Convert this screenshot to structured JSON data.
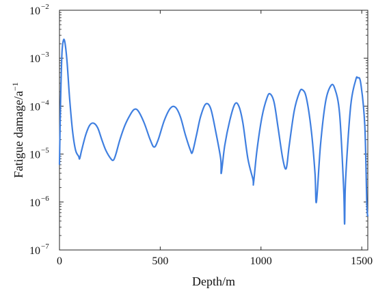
{
  "chart_data": {
    "type": "line",
    "title": "",
    "xlabel": "Depth/m",
    "ylabel": "Fatigue damage/a",
    "ylabel_superscript": "−1",
    "xlim": [
      0,
      1530
    ],
    "ylim": [
      1e-07,
      0.01
    ],
    "y_scale": "log",
    "x_ticks": [
      0,
      500,
      1000,
      1500
    ],
    "x_tick_labels": [
      "0",
      "500",
      "1000",
      "1500"
    ],
    "y_ticks": [
      1e-07,
      1e-06,
      1e-05,
      0.0001,
      0.001,
      0.01
    ],
    "y_tick_base": "10",
    "y_tick_exponents": [
      "−7",
      "−6",
      "−5",
      "−4",
      "−3",
      "−2"
    ],
    "grid": false,
    "legend": "none",
    "series": [
      {
        "color": "#3f7fe0",
        "x": [
          0,
          5,
          12,
          20,
          28,
          38,
          50,
          65,
          80,
          95,
          100,
          110,
          130,
          150,
          170,
          190,
          210,
          230,
          255,
          268,
          280,
          300,
          325,
          350,
          370,
          390,
          420,
          450,
          470,
          490,
          520,
          550,
          575,
          600,
          625,
          650,
          660,
          680,
          700,
          725,
          750,
          775,
          800,
          803,
          820,
          845,
          870,
          890,
          910,
          935,
          960,
          963,
          980,
          1005,
          1030,
          1045,
          1065,
          1085,
          1108,
          1125,
          1140,
          1165,
          1190,
          1205,
          1225,
          1250,
          1268,
          1275,
          1295,
          1320,
          1345,
          1365,
          1390,
          1410,
          1415,
          1420,
          1445,
          1470,
          1480,
          1495,
          1515,
          1525,
          1530
        ],
        "y": [
          6e-06,
          0.0001,
          0.0012,
          0.0024,
          0.002,
          0.0008,
          0.00015,
          3e-05,
          1.2e-05,
          9e-06,
          8e-06,
          1.2e-05,
          2.5e-05,
          4e-05,
          4.4e-05,
          3.5e-05,
          2e-05,
          1.2e-05,
          8e-06,
          7.5e-06,
          1e-05,
          2e-05,
          4e-05,
          6.5e-05,
          8.5e-05,
          8e-05,
          4.5e-05,
          2e-05,
          1.4e-05,
          2e-05,
          5e-05,
          9e-05,
          9.5e-05,
          6e-05,
          2.5e-05,
          1.2e-05,
          1.1e-05,
          2.5e-05,
          6e-05,
          0.00011,
          9e-05,
          3e-05,
          8e-06,
          4e-06,
          1.5e-05,
          5e-05,
          0.00011,
          0.0001,
          4.5e-05,
          8e-06,
          3e-06,
          2.5e-06,
          1.2e-05,
          6e-05,
          0.00015,
          0.00018,
          0.00012,
          3.5e-05,
          8e-06,
          5e-06,
          1.5e-05,
          8e-05,
          0.00019,
          0.00022,
          0.00015,
          3e-05,
          4e-06,
          1e-06,
          1.5e-05,
          0.00012,
          0.00026,
          0.00024,
          7e-05,
          2e-06,
          3.5e-07,
          3e-06,
          0.0001,
          0.00035,
          0.00039,
          0.0003,
          4e-05,
          1e-06,
          5e-07
        ]
      }
    ]
  }
}
